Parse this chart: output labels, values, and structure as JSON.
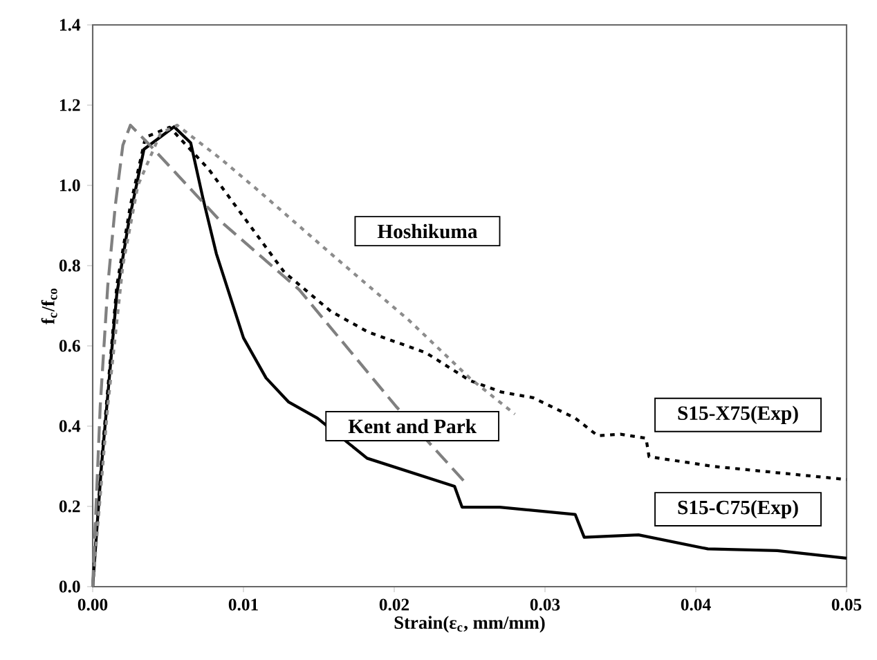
{
  "chart_data": {
    "type": "line",
    "xlabel": "Strain(ε$_{c}$, mm/mm)",
    "ylabel": "f$_{c}$/f$_{co}$",
    "xlim": [
      0,
      0.05
    ],
    "ylim": [
      0,
      1.4
    ],
    "xticks": [
      {
        "value": 0,
        "label": "0.00"
      },
      {
        "value": 0.01,
        "label": "0.01"
      },
      {
        "value": 0.02,
        "label": "0.02"
      },
      {
        "value": 0.03,
        "label": "0.03"
      },
      {
        "value": 0.04,
        "label": "0.04"
      },
      {
        "value": 0.05,
        "label": "0.05"
      }
    ],
    "yticks": [
      {
        "value": 0,
        "label": "0.0"
      },
      {
        "value": 0.2,
        "label": "0.2"
      },
      {
        "value": 0.4,
        "label": "0.4"
      },
      {
        "value": 0.6,
        "label": "0.6"
      },
      {
        "value": 0.8,
        "label": "0.8"
      },
      {
        "value": 1.0,
        "label": "1.0"
      },
      {
        "value": 1.2,
        "label": "1.2"
      },
      {
        "value": 1.4,
        "label": "1.4"
      }
    ],
    "grid": false,
    "legend": false,
    "marker": "none",
    "series": [
      {
        "name": "S15-C75(Exp)",
        "color": "#000000",
        "line_style": "solid",
        "x": [
          0,
          0.00058,
          0.0016,
          0.0024,
          0.0034,
          0.0054,
          0.0065,
          0.0073,
          0.0082,
          0.01,
          0.0115,
          0.013,
          0.0149,
          0.0182,
          0.024,
          0.0245,
          0.027,
          0.032,
          0.0326,
          0.0362,
          0.0408,
          0.0454,
          0.05
        ],
        "values": [
          0,
          0.3,
          0.73,
          0.91,
          1.09,
          1.146,
          1.106,
          0.97,
          0.83,
          0.62,
          0.52,
          0.46,
          0.42,
          0.32,
          0.25,
          0.198,
          0.198,
          0.18,
          0.123,
          0.129,
          0.094,
          0.09,
          0.071
        ]
      },
      {
        "name": "S15-X75(Exp)",
        "color": "#000000",
        "line_style": "dotted",
        "x": [
          0,
          0.0006,
          0.0016,
          0.0025,
          0.0035,
          0.0051,
          0.0077,
          0.0109,
          0.0127,
          0.0158,
          0.0183,
          0.0221,
          0.025,
          0.0271,
          0.0292,
          0.032,
          0.0335,
          0.035,
          0.0367,
          0.0369,
          0.0411,
          0.0454,
          0.05
        ],
        "values": [
          0,
          0.32,
          0.75,
          0.95,
          1.12,
          1.145,
          1.04,
          0.876,
          0.784,
          0.686,
          0.634,
          0.583,
          0.514,
          0.485,
          0.471,
          0.42,
          0.376,
          0.38,
          0.37,
          0.324,
          0.3,
          0.284,
          0.267
        ]
      },
      {
        "name": "Hoshikuma",
        "color": "#8c8c8c",
        "line_style": "dotted",
        "x": [
          0,
          0.001,
          0.002,
          0.003,
          0.0045,
          0.0056,
          0.0085,
          0.0109,
          0.0161,
          0.021,
          0.025,
          0.028
        ],
        "values": [
          0,
          0.45,
          0.8,
          1.0,
          1.13,
          1.15,
          1.066,
          0.99,
          0.82,
          0.663,
          0.52,
          0.43
        ]
      },
      {
        "name": "Kent and Park",
        "color": "#808080",
        "line_style": "dashed",
        "x": [
          0,
          0.0005,
          0.001,
          0.0015,
          0.002,
          0.0025,
          0.0038,
          0.0085,
          0.0137,
          0.0201,
          0.0247
        ],
        "values": [
          0,
          0.45,
          0.75,
          0.95,
          1.1,
          1.15,
          1.1,
          0.91,
          0.74,
          0.45,
          0.26
        ]
      }
    ]
  }
}
